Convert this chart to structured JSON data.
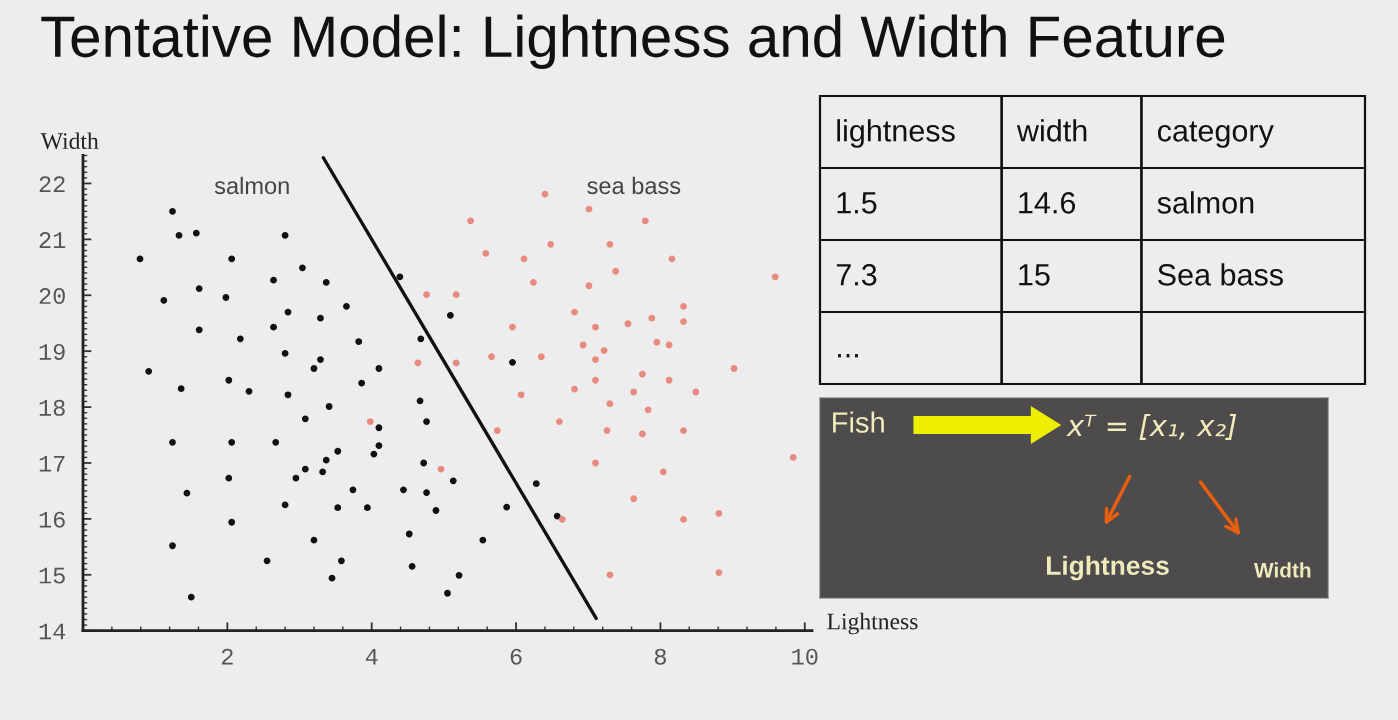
{
  "chart_data": [
    {
      "type": "scatter",
      "title": "Tentative Model: Lightness and Width Feature",
      "xlabel": "Lightness",
      "ylabel": "Width",
      "xlim": [
        0,
        10.1
      ],
      "ylim": [
        14,
        22.5
      ],
      "xticks": [
        2,
        4,
        6,
        8,
        10
      ],
      "yticks": [
        14,
        15,
        16,
        17,
        18,
        19,
        20,
        21,
        22
      ],
      "grid": false,
      "legend": false,
      "marker": "circle",
      "series": [
        {
          "name": "salmon",
          "color": "#111111",
          "x": [
            1.24,
            1.33,
            1.57,
            2.8,
            0.79,
            2.06,
            3.04,
            2.64,
            3.37,
            1.61,
            1.12,
            1.98,
            3.65,
            2.84,
            3.29,
            2.64,
            1.61,
            2.18,
            3.82,
            2.8,
            3.29,
            3.2,
            4.1,
            0.91,
            4.39,
            4.68,
            2.02,
            3.86,
            1.36,
            2.3,
            2.84,
            4.67,
            3.41,
            3.08,
            4.1,
            1.24,
            2.06,
            2.67,
            4.1,
            3.53,
            4.03,
            3.37,
            3.08,
            3.32,
            2.02,
            2.95,
            1.44,
            3.74,
            4.44,
            2.8,
            3.53,
            3.94,
            2.06,
            4.52,
            3.2,
            1.24,
            2.55,
            3.58,
            4.56,
            3.45,
            1.5,
            4.76,
            4.72,
            5.13,
            4.76,
            4.89,
            5.21,
            5.05,
            5.54,
            5.87,
            6.28,
            6.57,
            5.09,
            5.95
          ],
          "values": [
            21.5,
            21.07,
            21.11,
            21.07,
            20.65,
            20.65,
            20.49,
            20.27,
            20.23,
            20.12,
            19.91,
            19.96,
            19.8,
            19.7,
            19.59,
            19.43,
            19.38,
            19.22,
            19.17,
            18.96,
            18.85,
            18.69,
            18.69,
            18.64,
            20.33,
            19.22,
            18.48,
            18.43,
            18.33,
            18.28,
            18.22,
            18.11,
            18.01,
            17.79,
            17.63,
            17.37,
            17.37,
            17.37,
            17.31,
            17.21,
            17.16,
            17.05,
            16.89,
            16.84,
            16.73,
            16.73,
            16.46,
            16.52,
            16.52,
            16.25,
            16.2,
            16.2,
            15.94,
            15.73,
            15.62,
            15.52,
            15.25,
            15.25,
            15.15,
            14.94,
            14.6,
            17.74,
            17.0,
            16.68,
            16.47,
            16.15,
            14.99,
            14.67,
            15.62,
            16.21,
            16.63,
            16.05,
            19.64,
            18.8
          ]
        },
        {
          "name": "sea bass",
          "color": "#e98a80",
          "x": [
            6.4,
            7.01,
            5.37,
            7.79,
            5.58,
            6.48,
            7.3,
            6.11,
            8.16,
            7.38,
            9.59,
            6.24,
            7.01,
            4.76,
            5.17,
            6.81,
            8.32,
            8.32,
            7.1,
            7.55,
            7.88,
            5.95,
            6.93,
            7.22,
            7.95,
            8.12,
            7.1,
            4.64,
            5.17,
            5.66,
            6.35,
            9.02,
            7.75,
            7.1,
            8.12,
            6.81,
            7.63,
            8.49,
            6.07,
            7.3,
            7.83,
            6.6,
            5.74,
            7.26,
            7.75,
            8.32,
            9.84,
            7.1,
            4.96,
            8.04,
            7.63,
            6.64,
            8.32,
            8.81,
            8.81,
            7.3,
            3.98
          ],
          "values": [
            21.81,
            21.54,
            21.33,
            21.33,
            20.75,
            20.91,
            20.91,
            20.65,
            20.65,
            20.43,
            20.33,
            20.23,
            20.17,
            20.01,
            20.01,
            19.7,
            19.8,
            19.53,
            19.43,
            19.49,
            19.59,
            19.43,
            19.11,
            19.01,
            19.16,
            19.11,
            18.85,
            18.79,
            18.79,
            18.9,
            18.9,
            18.69,
            18.59,
            18.48,
            18.48,
            18.32,
            18.27,
            18.27,
            18.22,
            18.06,
            17.95,
            17.74,
            17.58,
            17.58,
            17.52,
            17.58,
            17.1,
            17.0,
            16.89,
            16.84,
            16.36,
            15.99,
            15.99,
            16.1,
            15.04,
            15.0,
            17.74
          ]
        },
        {
          "type": "line",
          "color": "#111111",
          "marker": "none",
          "line_style": "solid",
          "x": [
            3.33,
            7.11
          ],
          "values": [
            22.46,
            14.22
          ]
        }
      ]
    },
    {
      "type": "other",
      "categories": [
        "lightness",
        "width",
        "category"
      ],
      "cell_labels": [
        [
          "1.5",
          "14.6",
          "salmon"
        ],
        [
          "7.3",
          "15",
          "Sea bass"
        ],
        [
          "...",
          null,
          null
        ]
      ]
    },
    {
      "type": "other",
      "annotations": [
        "Fish",
        "xᵀ = [x₁, x₂]",
        "Lightness",
        "Width"
      ]
    }
  ]
}
